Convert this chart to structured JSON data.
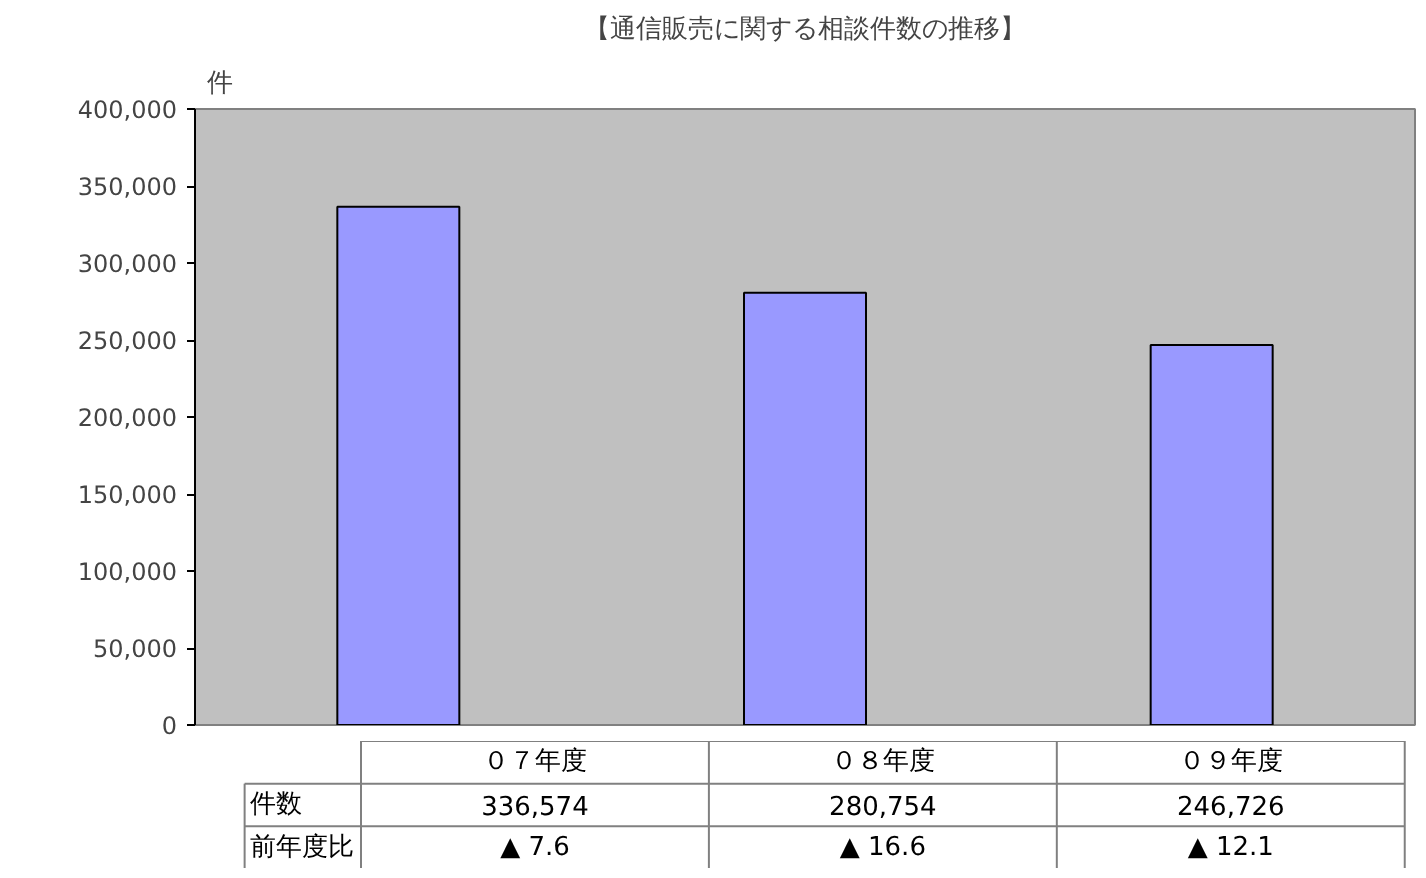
{
  "chart_data": {
    "type": "bar",
    "title": "【通信販売に関する相談件数の推移】",
    "ylabel": "件",
    "categories": [
      "０７年度",
      "０８年度",
      "０９年度"
    ],
    "values": [
      336574,
      280754,
      246726
    ],
    "value_labels": [
      "336,574",
      "280,754",
      "246,726"
    ],
    "color": "#9999ff",
    "ylim": [
      0,
      400000
    ],
    "yticks": [
      {
        "value": 0,
        "label": "0"
      },
      {
        "value": 50000,
        "label": "50,000"
      },
      {
        "value": 100000,
        "label": "100,000"
      },
      {
        "value": 150000,
        "label": "150,000"
      },
      {
        "value": 200000,
        "label": "200,000"
      },
      {
        "value": 250000,
        "label": "250,000"
      },
      {
        "value": 300000,
        "label": "300,000"
      },
      {
        "value": 350000,
        "label": "350,000"
      },
      {
        "value": 400000,
        "label": "400,000"
      }
    ],
    "annotations": [
      "件数",
      "前年度比",
      "▲ 7.6",
      "▲ 16.6",
      "▲ 12.1"
    ],
    "grid": false
  }
}
